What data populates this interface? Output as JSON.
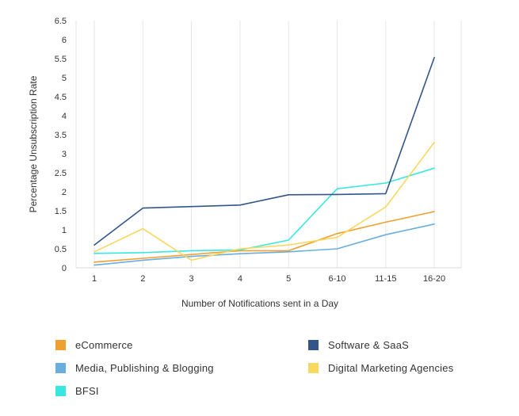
{
  "chart_data": {
    "type": "line",
    "xlabel": "Number of Notifications sent in a Day",
    "ylabel": "Percentage Unsubscription Rate",
    "categories": [
      "1",
      "2",
      "3",
      "4",
      "5",
      "6-10",
      "11-15",
      "16-20"
    ],
    "ylim": [
      0,
      6.5
    ],
    "yticks": [
      "0",
      "0.5",
      "1",
      "1.5",
      "2",
      "2.5",
      "3",
      "3.5",
      "4",
      "4.5",
      "5",
      "5.5",
      "6",
      "6.5"
    ],
    "grid": "vertical",
    "legend_position": "bottom",
    "series": [
      {
        "name": "eCommerce",
        "color": "#f0a030",
        "values": [
          0.15,
          0.25,
          0.35,
          0.45,
          0.45,
          0.9,
          1.2,
          1.48
        ]
      },
      {
        "name": "Media, Publishing & Blogging",
        "color": "#6aaee0",
        "values": [
          0.07,
          0.2,
          0.3,
          0.37,
          0.42,
          0.5,
          0.87,
          1.15
        ]
      },
      {
        "name": "BFSI",
        "color": "#38e8e0",
        "values": [
          0.38,
          0.4,
          0.45,
          0.47,
          0.73,
          2.08,
          2.23,
          2.62
        ]
      },
      {
        "name": "Software & SaaS",
        "color": "#34558a",
        "values": [
          0.6,
          1.57,
          1.61,
          1.65,
          1.92,
          1.93,
          1.95,
          5.53
        ]
      },
      {
        "name": "Digital Marketing Agencies",
        "color": "#f8d860",
        "values": [
          0.42,
          1.03,
          0.2,
          0.5,
          0.6,
          0.8,
          1.6,
          3.3
        ]
      }
    ]
  }
}
